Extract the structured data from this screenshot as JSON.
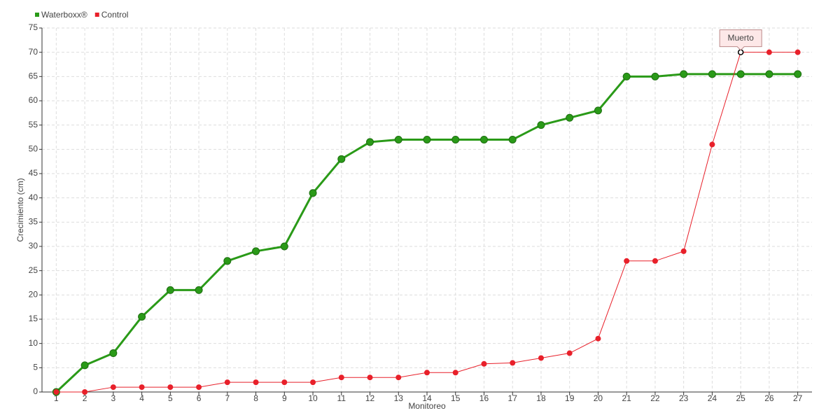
{
  "chart_data": {
    "type": "line",
    "x": [
      1,
      2,
      3,
      4,
      5,
      6,
      7,
      8,
      9,
      10,
      11,
      12,
      13,
      14,
      15,
      16,
      17,
      18,
      19,
      20,
      21,
      22,
      23,
      24,
      25,
      26,
      27
    ],
    "xlim": [
      0.5,
      27.5
    ],
    "xticks": [
      1,
      2,
      3,
      4,
      5,
      6,
      7,
      8,
      9,
      10,
      11,
      12,
      13,
      14,
      15,
      16,
      17,
      18,
      19,
      20,
      21,
      22,
      23,
      24,
      25,
      26,
      27
    ],
    "ylim": [
      0,
      75
    ],
    "yticks": [
      0,
      5,
      10,
      15,
      20,
      25,
      30,
      35,
      40,
      45,
      50,
      55,
      60,
      65,
      70,
      75
    ],
    "xlabel": "Monitoreo",
    "ylabel": "Crecimiento (cm)",
    "grid": true,
    "legend": "top-left",
    "series": [
      {
        "name": "Waterboxx®",
        "color": "#2a9a18",
        "values": [
          0,
          5.5,
          8,
          15.5,
          21,
          21,
          27,
          29,
          30,
          41,
          48,
          51.5,
          52,
          52,
          52,
          52,
          52,
          55,
          56.5,
          58,
          65,
          65,
          65.5,
          65.5,
          65.5,
          65.5,
          65.5
        ]
      },
      {
        "name": "Control",
        "color": "#e8202a",
        "values": [
          0,
          0,
          1,
          1,
          1,
          1,
          2,
          2,
          2,
          2,
          3,
          3,
          3,
          4,
          4,
          5.8,
          6,
          7,
          8,
          11,
          27,
          27,
          29,
          51,
          70,
          70,
          70
        ]
      }
    ],
    "annotations": [
      {
        "text": "Muerto",
        "x": 25,
        "y": 70
      }
    ]
  }
}
